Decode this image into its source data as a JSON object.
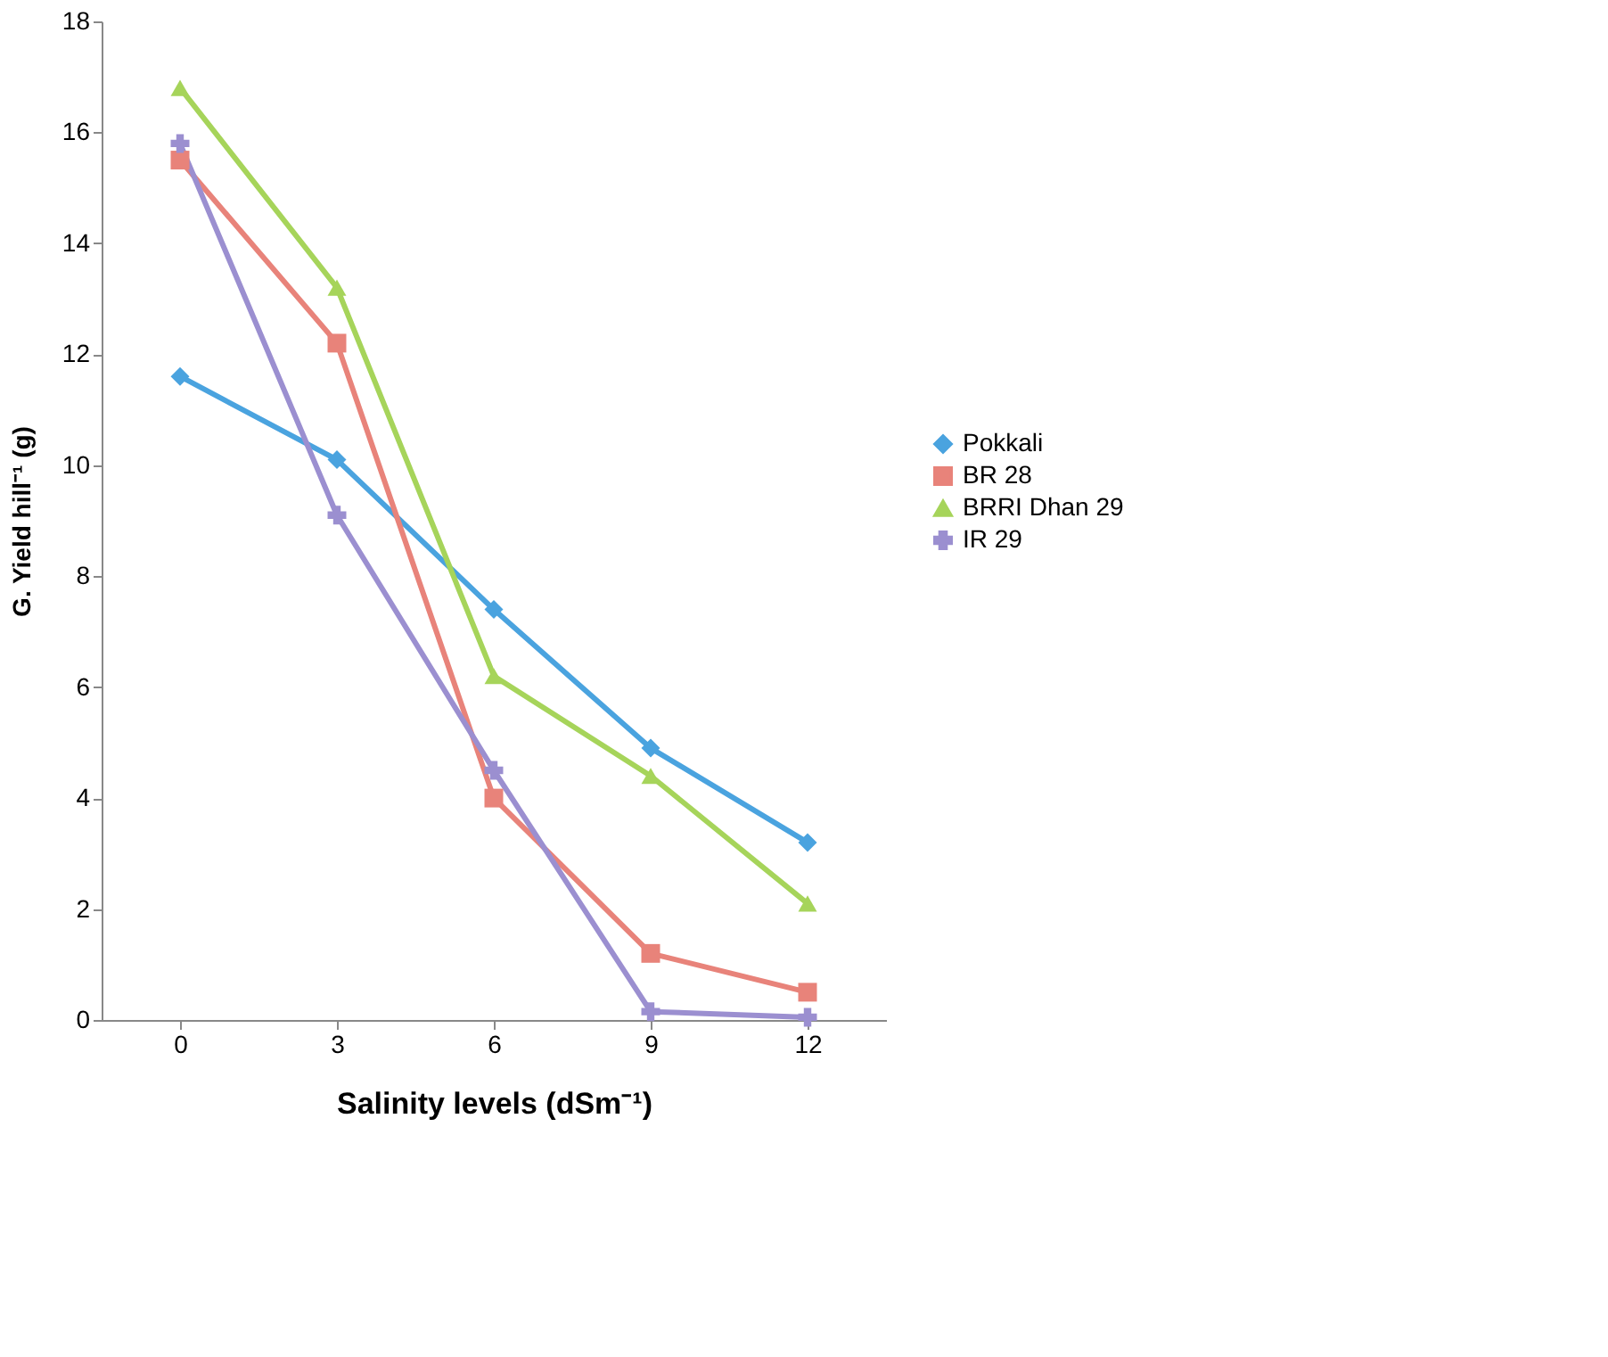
{
  "chart_data": {
    "type": "line",
    "xlabel": "Salinity levels (dSm⁻¹)",
    "ylabel": "G. Yield hill⁻¹ (g)",
    "categories": [
      "0",
      "3",
      "6",
      "9",
      "12"
    ],
    "ylim": [
      0,
      18
    ],
    "yticks": [
      0,
      2,
      4,
      6,
      8,
      10,
      12,
      14,
      16,
      18
    ],
    "grid": false,
    "legend": "right",
    "series": [
      {
        "name": "Pokkali",
        "color": "#4aa3df",
        "marker": "diamond",
        "values": [
          11.6,
          10.1,
          7.4,
          4.9,
          3.2
        ]
      },
      {
        "name": "BR 28",
        "color": "#e8837a",
        "marker": "square",
        "values": [
          15.5,
          12.2,
          4.0,
          1.2,
          0.5
        ]
      },
      {
        "name": "BRRI Dhan 29",
        "color": "#a6d45a",
        "marker": "triangle",
        "values": [
          16.8,
          13.2,
          6.2,
          4.4,
          2.1
        ]
      },
      {
        "name": "IR 29",
        "color": "#9b8fd0",
        "marker": "cross",
        "values": [
          15.8,
          9.1,
          4.5,
          0.15,
          0.05
        ]
      }
    ]
  }
}
